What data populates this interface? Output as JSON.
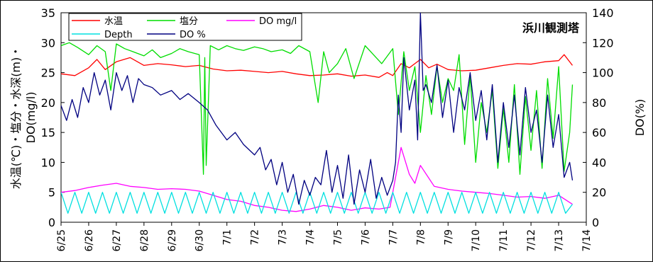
{
  "chart_data": {
    "type": "line",
    "title": "浜川観測塔",
    "ylabel_left_line1": "水温(℃)・塩分・水深(m)・",
    "ylabel_left_line2": "DO(mg/l)",
    "ylabel_right": "DO(%)",
    "xlabel": "",
    "left_ylim": [
      0,
      35
    ],
    "left_yticks": [
      0,
      5,
      10,
      15,
      20,
      25,
      30,
      35
    ],
    "right_ylim": [
      0,
      140
    ],
    "right_yticks": [
      0,
      20,
      40,
      60,
      80,
      100,
      120,
      140
    ],
    "x_ticks": [
      "6/25",
      "6/26",
      "6/27",
      "6/28",
      "6/29",
      "6/30",
      "7/1",
      "7/2",
      "7/3",
      "7/4",
      "7/5",
      "7/6",
      "7/7",
      "7/8",
      "7/9",
      "7/10",
      "7/11",
      "7/12",
      "7/13",
      "7/14"
    ],
    "x_range_days": [
      0,
      19
    ],
    "grid": false,
    "legend_position": "top-left",
    "series": [
      {
        "name": "水温",
        "color": "#ff0000",
        "axis": "left",
        "x": [
          0,
          0.5,
          1,
          1.3,
          1.6,
          2,
          2.5,
          3,
          3.5,
          4,
          4.5,
          5,
          5.5,
          6,
          6.5,
          7,
          7.5,
          8,
          8.5,
          9,
          9.5,
          10,
          10.5,
          11,
          11.5,
          11.8,
          12,
          12.3,
          12.6,
          12.8,
          13,
          13.3,
          13.6,
          14,
          14.5,
          15,
          15.5,
          16,
          16.5,
          17,
          17.5,
          18,
          18.2,
          18.5
        ],
        "y": [
          24.8,
          24.5,
          25.8,
          27.2,
          25.5,
          26.8,
          27.5,
          26.2,
          26.5,
          26.3,
          26.0,
          26.2,
          25.6,
          25.3,
          25.4,
          25.2,
          25.0,
          25.2,
          24.8,
          24.5,
          24.6,
          24.8,
          24.4,
          24.6,
          24.2,
          25.0,
          24.5,
          26.5,
          25.8,
          26.5,
          27.2,
          25.8,
          26.4,
          25.5,
          25.3,
          25.4,
          25.8,
          26.2,
          26.5,
          26.4,
          26.8,
          27.0,
          28.0,
          26.2
        ]
      },
      {
        "name": "塩分",
        "color": "#00dd00",
        "axis": "left",
        "x": [
          0,
          0.3,
          0.6,
          1,
          1.3,
          1.6,
          1.8,
          2,
          2.3,
          2.6,
          3,
          3.3,
          3.6,
          4,
          4.3,
          4.6,
          5,
          5.15,
          5.2,
          5.25,
          5.4,
          5.7,
          6,
          6.3,
          6.6,
          7,
          7.3,
          7.6,
          8,
          8.3,
          8.6,
          9,
          9.3,
          9.5,
          9.7,
          10,
          10.3,
          10.6,
          11,
          11.3,
          11.6,
          12,
          12.2,
          12.4,
          12.6,
          12.8,
          13,
          13.2,
          13.4,
          13.6,
          13.8,
          14,
          14.2,
          14.4,
          14.6,
          14.8,
          15,
          15.2,
          15.4,
          15.6,
          15.8,
          16,
          16.2,
          16.4,
          16.6,
          16.8,
          17,
          17.2,
          17.4,
          17.6,
          17.8,
          18,
          18.2,
          18.4,
          18.5
        ],
        "y": [
          29.5,
          30.0,
          29.2,
          28.0,
          29.5,
          28.5,
          22.0,
          29.8,
          29.0,
          28.5,
          27.8,
          28.8,
          27.5,
          28.2,
          29.0,
          28.5,
          28.0,
          8.0,
          27.5,
          9.5,
          29.5,
          28.8,
          29.5,
          29.0,
          28.7,
          29.3,
          29.0,
          28.5,
          28.8,
          28.2,
          29.5,
          28.5,
          20.0,
          28.5,
          25.0,
          26.5,
          29.0,
          24.0,
          29.5,
          28.0,
          26.5,
          29.0,
          18.0,
          28.5,
          22.0,
          26.0,
          15.0,
          24.5,
          18.0,
          26.0,
          20.0,
          24.0,
          22.0,
          28.0,
          13.0,
          24.5,
          10.0,
          20.0,
          15.0,
          22.0,
          9.0,
          19.0,
          10.0,
          23.0,
          8.0,
          21.0,
          12.0,
          22.0,
          9.0,
          24.0,
          14.0,
          26.0,
          8.5,
          15.0,
          23.0
        ]
      },
      {
        "name": "DO mg/l",
        "color": "#ff00ff",
        "axis": "left",
        "x": [
          0,
          0.5,
          1,
          1.5,
          2,
          2.5,
          3,
          3.5,
          4,
          4.5,
          5,
          5.5,
          6,
          6.5,
          7,
          7.5,
          8,
          8.5,
          9,
          9.5,
          10,
          10.5,
          11,
          11.5,
          11.9,
          12,
          12.3,
          12.6,
          12.8,
          13,
          13.5,
          14,
          14.5,
          15,
          15.5,
          16,
          16.5,
          17,
          17.5,
          18,
          18.5
        ],
        "y": [
          5.0,
          5.3,
          5.8,
          6.2,
          6.5,
          6.0,
          5.8,
          5.5,
          5.6,
          5.5,
          5.2,
          4.5,
          3.8,
          3.5,
          2.8,
          2.5,
          2.0,
          1.8,
          2.2,
          2.8,
          2.5,
          2.0,
          2.4,
          2.2,
          2.5,
          5.0,
          12.5,
          8.0,
          6.5,
          9.5,
          6.0,
          5.5,
          5.2,
          5.0,
          4.8,
          4.5,
          4.2,
          4.3,
          4.0,
          4.5,
          3.0
        ]
      },
      {
        "name": "Depth",
        "color": "#00e0e0",
        "axis": "left",
        "x": [
          0,
          0.25,
          0.5,
          0.75,
          1,
          1.25,
          1.5,
          1.75,
          2,
          2.25,
          2.5,
          2.75,
          3,
          3.25,
          3.5,
          3.75,
          4,
          4.25,
          4.5,
          4.75,
          5,
          5.25,
          5.5,
          5.75,
          6,
          6.25,
          6.5,
          6.75,
          7,
          7.25,
          7.5,
          7.75,
          8,
          8.25,
          8.5,
          8.75,
          9,
          9.25,
          9.5,
          9.75,
          10,
          10.25,
          10.5,
          10.75,
          11,
          11.25,
          11.5,
          11.75,
          12,
          12.25,
          12.5,
          12.75,
          13,
          13.25,
          13.5,
          13.75,
          14,
          14.25,
          14.5,
          14.75,
          15,
          15.25,
          15.5,
          15.75,
          16,
          16.25,
          16.5,
          16.75,
          17,
          17.25,
          17.5,
          17.75,
          18,
          18.25,
          18.5
        ],
        "y": [
          5.0,
          1.5,
          5.0,
          1.5,
          5.0,
          1.5,
          5.0,
          1.5,
          5.0,
          1.5,
          5.0,
          1.5,
          5.0,
          1.5,
          5.0,
          1.5,
          5.0,
          1.5,
          5.0,
          1.5,
          5.0,
          1.5,
          5.0,
          1.5,
          5.0,
          1.5,
          5.0,
          1.5,
          5.0,
          1.5,
          5.0,
          1.5,
          5.0,
          1.5,
          5.0,
          1.5,
          5.0,
          1.5,
          5.0,
          1.5,
          5.0,
          1.5,
          5.0,
          1.5,
          5.0,
          1.5,
          5.0,
          1.5,
          5.0,
          1.5,
          5.0,
          1.5,
          5.0,
          1.5,
          5.0,
          1.5,
          5.0,
          1.5,
          5.0,
          1.5,
          5.0,
          1.5,
          5.0,
          1.5,
          5.0,
          1.5,
          5.0,
          1.5,
          5.0,
          1.5,
          5.0,
          1.5,
          5.0,
          1.5,
          3.0
        ]
      },
      {
        "name": "DO %",
        "color": "#000080",
        "axis": "right",
        "x": [
          0,
          0.2,
          0.4,
          0.6,
          0.8,
          1,
          1.2,
          1.4,
          1.6,
          1.8,
          2,
          2.2,
          2.4,
          2.6,
          2.8,
          3,
          3.3,
          3.6,
          4,
          4.3,
          4.6,
          5,
          5.3,
          5.6,
          6,
          6.3,
          6.6,
          7,
          7.2,
          7.4,
          7.6,
          7.8,
          8,
          8.2,
          8.4,
          8.6,
          8.8,
          9,
          9.2,
          9.4,
          9.6,
          9.8,
          10,
          10.2,
          10.4,
          10.6,
          10.8,
          11,
          11.2,
          11.4,
          11.6,
          11.8,
          12,
          12.1,
          12.2,
          12.3,
          12.4,
          12.6,
          12.8,
          12.9,
          13,
          13.1,
          13.2,
          13.4,
          13.6,
          13.8,
          14,
          14.2,
          14.4,
          14.6,
          14.8,
          15,
          15.2,
          15.4,
          15.6,
          15.8,
          16,
          16.2,
          16.4,
          16.6,
          16.8,
          17,
          17.2,
          17.4,
          17.6,
          17.8,
          18,
          18.2,
          18.4,
          18.5
        ],
        "y": [
          78,
          68,
          82,
          70,
          90,
          80,
          100,
          85,
          95,
          75,
          100,
          88,
          98,
          80,
          96,
          92,
          90,
          85,
          88,
          82,
          86,
          80,
          75,
          65,
          55,
          60,
          52,
          45,
          50,
          35,
          42,
          25,
          40,
          20,
          32,
          12,
          28,
          18,
          30,
          25,
          48,
          20,
          38,
          16,
          45,
          12,
          35,
          20,
          42,
          16,
          30,
          18,
          28,
          40,
          85,
          60,
          110,
          75,
          95,
          55,
          140,
          88,
          92,
          80,
          105,
          70,
          95,
          60,
          90,
          75,
          100,
          68,
          88,
          55,
          92,
          40,
          80,
          50,
          85,
          45,
          90,
          60,
          75,
          40,
          85,
          50,
          72,
          30,
          40,
          28
        ]
      }
    ]
  }
}
